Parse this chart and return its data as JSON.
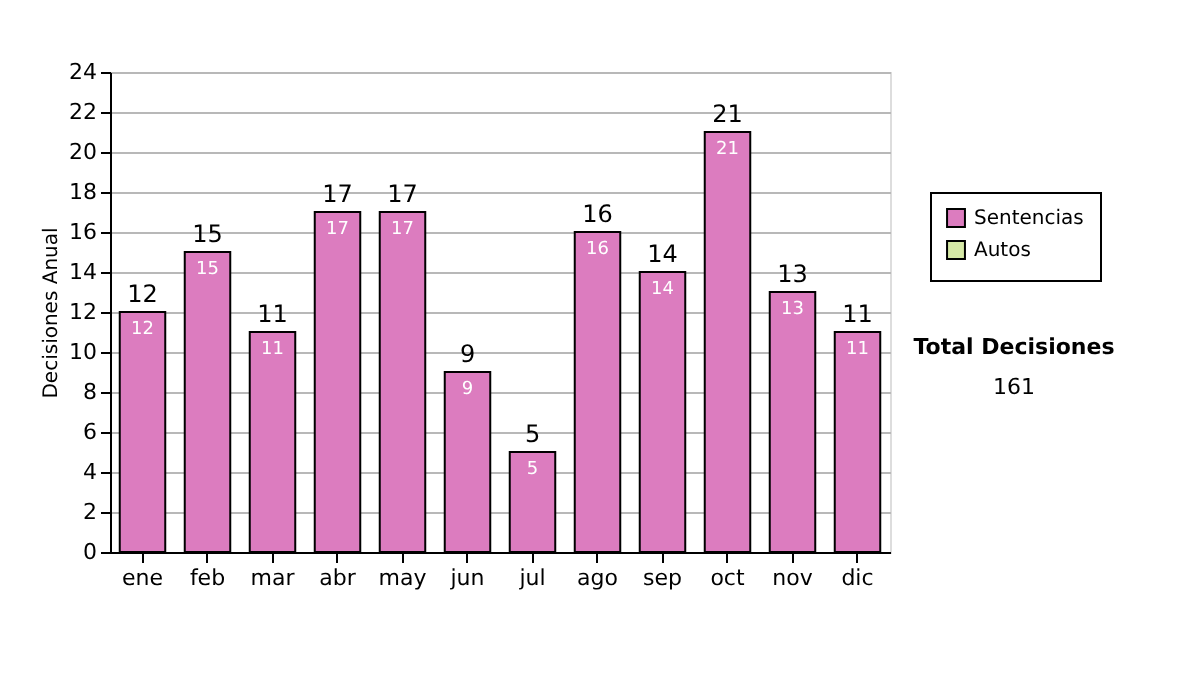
{
  "chart_data": {
    "type": "bar",
    "ylabel": "Decisiones Anual",
    "categories": [
      "ene",
      "feb",
      "mar",
      "abr",
      "may",
      "jun",
      "jul",
      "ago",
      "sep",
      "oct",
      "nov",
      "dic"
    ],
    "series": [
      {
        "name": "Sentencias",
        "color": "#dc7cbf",
        "values": [
          12,
          15,
          11,
          17,
          17,
          9,
          5,
          16,
          14,
          21,
          13,
          11
        ]
      },
      {
        "name": "Autos",
        "color": "#d6e9a6",
        "values": [
          null,
          null,
          null,
          null,
          null,
          null,
          null,
          null,
          null,
          null,
          null,
          null
        ]
      }
    ],
    "stacked": true,
    "data_labels": true,
    "totals": [
      "12",
      "15",
      "11",
      "17",
      "17",
      "9",
      "5",
      "16",
      "14",
      "21",
      "13",
      "11"
    ],
    "ylim": [
      0,
      24
    ],
    "yticks": [
      0,
      2,
      4,
      6,
      8,
      10,
      12,
      14,
      16,
      18,
      20,
      22,
      24
    ],
    "grid": "y",
    "legend": "right",
    "annotations": [
      "Total Decisiones",
      "161"
    ]
  }
}
